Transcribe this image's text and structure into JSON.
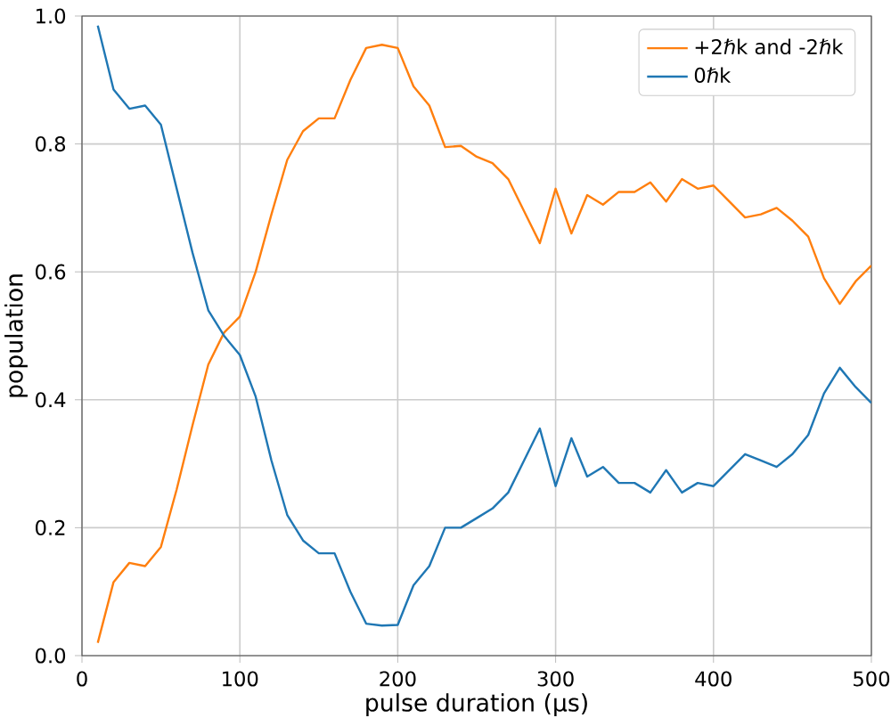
{
  "chart_data": {
    "type": "line",
    "xlabel": "pulse duration (μs)",
    "ylabel": "population",
    "x": [
      10,
      20,
      30,
      40,
      50,
      60,
      70,
      80,
      90,
      100,
      110,
      120,
      130,
      140,
      150,
      160,
      170,
      180,
      190,
      200,
      210,
      220,
      230,
      240,
      250,
      260,
      270,
      280,
      290,
      300,
      310,
      320,
      330,
      340,
      350,
      360,
      370,
      380,
      390,
      400,
      410,
      420,
      430,
      440,
      450,
      460,
      470,
      480,
      490,
      500
    ],
    "series": [
      {
        "name": "+2ℏk and -2ℏk",
        "color": "#ff7f0e",
        "values": [
          0.02,
          0.115,
          0.145,
          0.14,
          0.17,
          0.26,
          0.36,
          0.455,
          0.505,
          0.53,
          0.6,
          0.69,
          0.775,
          0.82,
          0.84,
          0.84,
          0.9,
          0.95,
          0.955,
          0.95,
          0.89,
          0.86,
          0.795,
          0.797,
          0.78,
          0.77,
          0.745,
          0.695,
          0.645,
          0.73,
          0.66,
          0.72,
          0.705,
          0.725,
          0.725,
          0.74,
          0.71,
          0.745,
          0.73,
          0.735,
          0.71,
          0.685,
          0.69,
          0.7,
          0.68,
          0.655,
          0.59,
          0.55,
          0.585,
          0.61
        ]
      },
      {
        "name": "0ℏk",
        "color": "#1f77b4",
        "values": [
          0.985,
          0.885,
          0.855,
          0.86,
          0.83,
          0.73,
          0.63,
          0.54,
          0.5,
          0.47,
          0.405,
          0.305,
          0.22,
          0.18,
          0.16,
          0.16,
          0.1,
          0.05,
          0.047,
          0.048,
          0.11,
          0.14,
          0.2,
          0.2,
          0.215,
          0.23,
          0.255,
          0.305,
          0.355,
          0.265,
          0.34,
          0.28,
          0.295,
          0.27,
          0.27,
          0.255,
          0.29,
          0.255,
          0.27,
          0.265,
          0.29,
          0.315,
          0.305,
          0.295,
          0.315,
          0.345,
          0.41,
          0.45,
          0.42,
          0.395
        ]
      }
    ],
    "xlim": [
      0,
      500
    ],
    "ylim": [
      0,
      1
    ],
    "xticks": [
      0,
      100,
      200,
      300,
      400,
      500
    ],
    "yticks": [
      {
        "value": 0,
        "label": "0.0"
      },
      {
        "value": 0.2,
        "label": "0.2"
      },
      {
        "value": 0.4,
        "label": "0.4"
      },
      {
        "value": 0.6,
        "label": "0.6"
      },
      {
        "value": 0.8,
        "label": "0.8"
      },
      {
        "value": 1,
        "label": "1.0"
      }
    ],
    "grid": true,
    "legend": "top right",
    "marker": "none",
    "line_style": "solid"
  }
}
